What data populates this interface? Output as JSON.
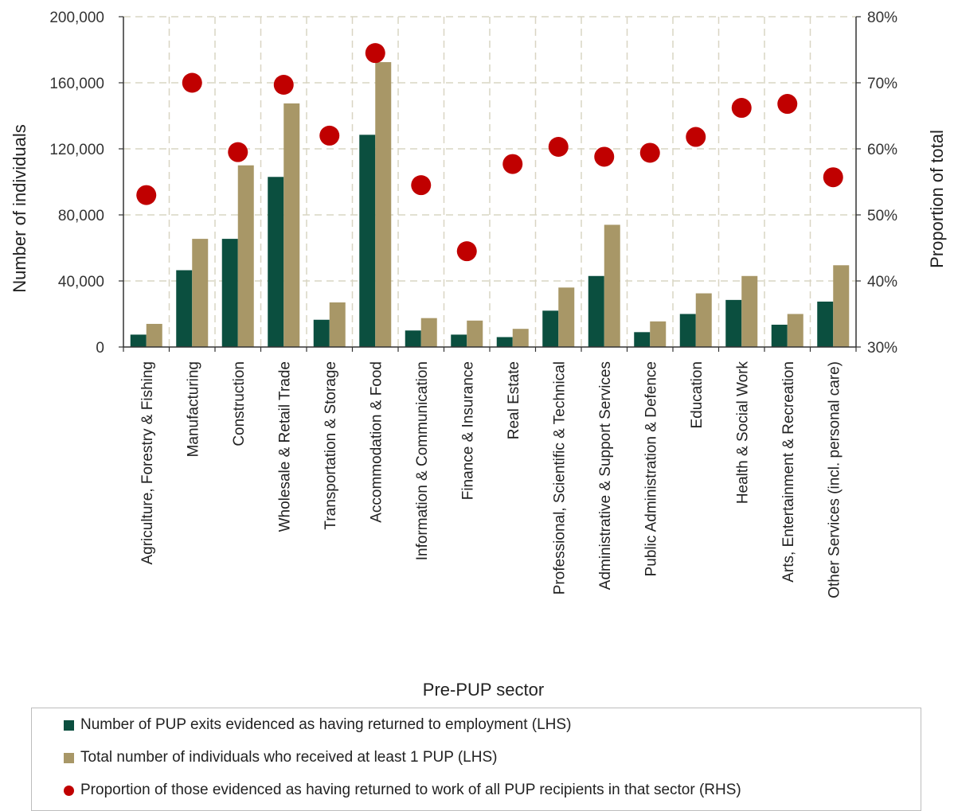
{
  "colors": {
    "series1": "#0b4f3f",
    "series2": "#a89767",
    "proportion": "#c00000",
    "grid": "#d9d5c3",
    "axis": "#333333"
  },
  "chart_data": {
    "type": "bar",
    "xlabel": "Pre-PUP sector",
    "ylabel": "Number of individuals",
    "y2label": "Proportion of total",
    "ylim": [
      0,
      200000
    ],
    "y2lim": [
      30,
      80
    ],
    "yticks": [
      "0",
      "40,000",
      "80,000",
      "120,000",
      "160,000",
      "200,000"
    ],
    "y2ticks": [
      "30%",
      "40%",
      "50%",
      "60%",
      "70%",
      "80%"
    ],
    "grid": true,
    "legend_position": "bottom",
    "categories": [
      "Agriculture, Forestry & Fishing",
      "Manufacturing",
      "Construction",
      "Wholesale & Retail Trade",
      "Transportation & Storage",
      "Accommodation & Food",
      "Information & Communication",
      "Finance & Insurance",
      "Real Estate",
      "Professional, Scientific & Technical",
      "Administrative & Support Services",
      "Public Administration & Defence",
      "Education",
      "Health & Social Work",
      "Arts, Entertainment & Recreation",
      "Other Services (incl. personal care)"
    ],
    "series": [
      {
        "name": "Number of PUP exits evidenced as having returned to employment (LHS)",
        "axis": "left",
        "values": [
          7500,
          46500,
          65500,
          103000,
          16500,
          128500,
          10000,
          7500,
          6000,
          22000,
          43000,
          9000,
          20000,
          28500,
          13500,
          27500
        ]
      },
      {
        "name": "Total number of individuals who received at least 1 PUP (LHS)",
        "axis": "left",
        "values": [
          14000,
          65500,
          110000,
          147500,
          27000,
          172500,
          17500,
          16000,
          11000,
          36000,
          74000,
          15500,
          32500,
          43000,
          20000,
          49500
        ]
      },
      {
        "name": "Proportion of those evidenced as having returned to work of all PUP recipients in that sector (RHS)",
        "axis": "right",
        "values": [
          53,
          70,
          59.5,
          69.7,
          62,
          74.5,
          54.5,
          44.5,
          57.7,
          60.3,
          58.8,
          59.4,
          61.8,
          66.2,
          66.8,
          55.7
        ]
      }
    ]
  }
}
